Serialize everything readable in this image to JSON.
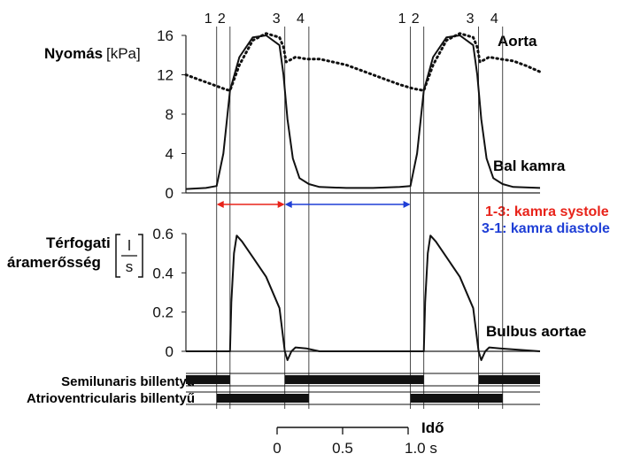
{
  "chart_data": [
    {
      "type": "line",
      "ylabel": "Nyomás",
      "yunit": "[kPa]",
      "yticks": [
        "0",
        "4",
        "8",
        "12",
        "16"
      ],
      "ylim": [
        0,
        16
      ],
      "xlim": [
        -0.7,
        1.95
      ],
      "phase_labels": [
        "1",
        "2",
        "3",
        "4",
        "1",
        "2",
        "3",
        "4"
      ],
      "phase_times": [
        -0.47,
        -0.37,
        0.04,
        0.22,
        0.98,
        1.08,
        1.49,
        1.67
      ],
      "series": [
        {
          "name": "Aorta",
          "style": "dotted",
          "x": [
            -0.7,
            -0.6,
            -0.5,
            -0.4,
            -0.37,
            -0.3,
            -0.2,
            -0.1,
            0.0,
            0.03,
            0.05,
            0.08,
            0.12,
            0.2,
            0.3,
            0.4,
            0.5,
            0.6,
            0.7,
            0.8,
            0.9,
            1.0,
            1.08,
            1.15,
            1.25,
            1.35,
            1.45,
            1.48,
            1.5,
            1.53,
            1.57,
            1.65,
            1.75,
            1.85,
            1.95
          ],
          "y": [
            12.0,
            11.5,
            11.0,
            10.5,
            10.4,
            13.0,
            15.5,
            16.2,
            15.8,
            14.8,
            13.3,
            13.5,
            13.8,
            13.6,
            13.6,
            13.3,
            13.0,
            12.5,
            12.0,
            11.5,
            11.0,
            10.6,
            10.4,
            13.0,
            15.5,
            16.2,
            15.8,
            14.8,
            13.3,
            13.5,
            13.8,
            13.6,
            13.4,
            12.9,
            12.3
          ]
        },
        {
          "name": "Bal kamra",
          "style": "solid",
          "x": [
            -0.7,
            -0.55,
            -0.47,
            -0.42,
            -0.37,
            -0.3,
            -0.2,
            -0.1,
            0.0,
            0.03,
            0.06,
            0.1,
            0.15,
            0.22,
            0.3,
            0.5,
            0.7,
            0.9,
            0.98,
            1.03,
            1.08,
            1.15,
            1.25,
            1.35,
            1.45,
            1.48,
            1.51,
            1.55,
            1.6,
            1.67,
            1.75,
            1.95
          ],
          "y": [
            0.4,
            0.5,
            0.7,
            4.0,
            10.4,
            13.8,
            15.8,
            16.0,
            15.0,
            12.0,
            7.5,
            3.5,
            1.5,
            0.9,
            0.6,
            0.5,
            0.5,
            0.6,
            0.7,
            4.0,
            10.4,
            13.8,
            15.8,
            16.0,
            15.0,
            12.0,
            7.5,
            3.5,
            1.5,
            0.9,
            0.6,
            0.5
          ]
        }
      ]
    },
    {
      "type": "line",
      "ylabel_line1": "Térfogati",
      "ylabel_line2": "áramerősség",
      "yunit_num": "l",
      "yunit_den": "s",
      "yticks": [
        "0",
        "0.2",
        "0.4",
        "0.6"
      ],
      "ylim": [
        -0.05,
        0.6
      ],
      "xlim": [
        -0.7,
        1.95
      ],
      "series": [
        {
          "name": "Bulbus aortae",
          "style": "solid",
          "x": [
            -0.7,
            -0.37,
            -0.36,
            -0.34,
            -0.32,
            -0.28,
            -0.2,
            -0.1,
            0.0,
            0.04,
            0.06,
            0.09,
            0.12,
            0.2,
            0.3,
            1.08,
            1.09,
            1.11,
            1.13,
            1.17,
            1.25,
            1.35,
            1.45,
            1.49,
            1.51,
            1.54,
            1.57,
            1.65,
            1.95
          ],
          "y": [
            0.0,
            0.0,
            0.25,
            0.5,
            0.59,
            0.56,
            0.48,
            0.38,
            0.22,
            0.0,
            -0.045,
            0.0,
            0.02,
            0.015,
            0.0,
            0.0,
            0.25,
            0.5,
            0.59,
            0.56,
            0.48,
            0.38,
            0.22,
            0.0,
            -0.045,
            0.0,
            0.02,
            0.015,
            0.0
          ]
        }
      ]
    }
  ],
  "annotations": {
    "systole": "1-3: kamra systole",
    "diastole": "3-1: kamra diastole",
    "systole_color": "#e8231a",
    "diastole_color": "#1f3fd6",
    "systole_range": [
      -0.47,
      0.04
    ],
    "diastole_range": [
      0.04,
      0.98
    ]
  },
  "valves": [
    {
      "name": "Semilunaris billentyű",
      "open_intervals": [
        [
          -0.37,
          0.04
        ],
        [
          1.08,
          1.49
        ]
      ]
    },
    {
      "name": "Atrioventricularis billentyű",
      "open_intervals": [
        [
          -0.7,
          -0.47
        ],
        [
          0.22,
          0.98
        ],
        [
          1.67,
          1.95
        ]
      ]
    }
  ],
  "timescale": {
    "label": "Idő",
    "ticks": [
      0,
      0.5,
      1.0
    ],
    "tick_labels": [
      "0",
      "0.5",
      "1.0 s"
    ]
  }
}
